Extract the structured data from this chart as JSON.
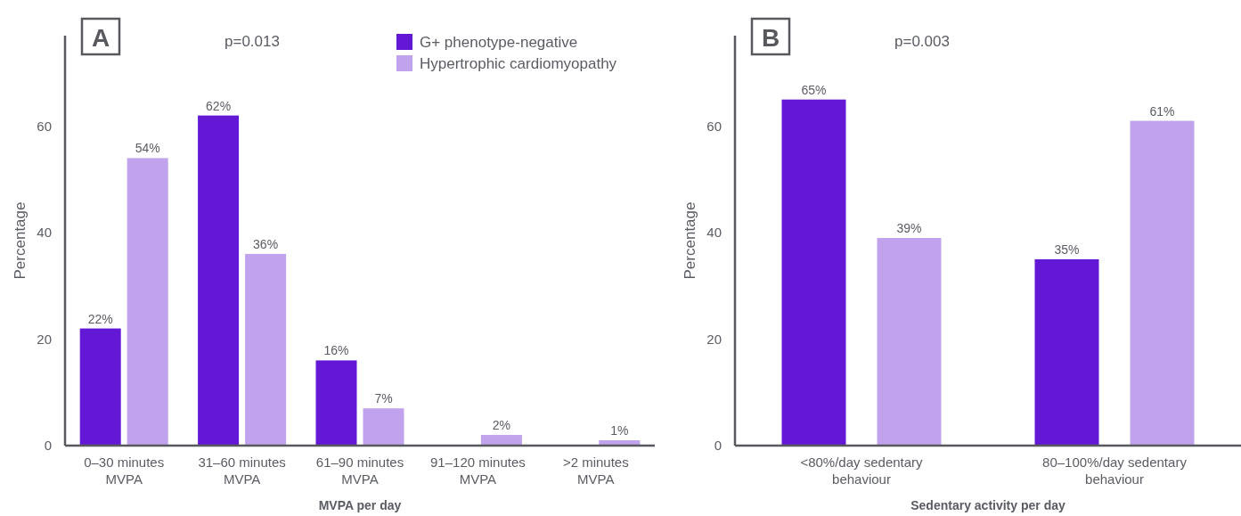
{
  "chart_data": [
    {
      "type": "bar",
      "title": "p=0.013",
      "annotations": [
        "A"
      ],
      "xlabel": "MVPA per day",
      "ylabel": "Percentage",
      "categories": [
        "0–30 minutes\nMVPA",
        "31–60 minutes\nMVPA",
        "61–90 minutes\nMVPA",
        "91–120 minutes\nMVPA",
        ">2 minutes\nMVPA"
      ],
      "series": [
        {
          "name": "G+ phenotype-negative",
          "color": "#6318d6",
          "values": [
            22,
            62,
            16,
            null,
            null
          ],
          "value_labels": [
            "22%",
            "62%",
            "16%",
            null,
            null
          ]
        },
        {
          "name": "Hypertrophic cardiomyopathy",
          "color": "#c1a3ed",
          "values": [
            54,
            36,
            7,
            2,
            1
          ],
          "value_labels": [
            "54%",
            "36%",
            "7%",
            "2%",
            "1%"
          ]
        }
      ],
      "ylim": [
        0,
        77
      ],
      "yticks": [
        0,
        20,
        40,
        60
      ],
      "grid": false,
      "legend": "top right"
    },
    {
      "type": "bar",
      "title": "p=0.003",
      "annotations": [
        "B"
      ],
      "xlabel": "Sedentary activity per day",
      "ylabel": "Percentage",
      "categories": [
        "<80%/day sedentary\nbehaviour",
        "80–100%/day sedentary\nbehaviour"
      ],
      "series": [
        {
          "color": "#6318d6",
          "values": [
            65,
            35
          ],
          "value_labels": [
            "65%",
            "35%"
          ]
        },
        {
          "color": "#c1a3ed",
          "values": [
            39,
            61
          ],
          "value_labels": [
            "39%",
            "61%"
          ]
        }
      ],
      "ylim": [
        0,
        77
      ],
      "yticks": [
        0,
        20,
        40,
        60
      ],
      "grid": false,
      "legend": false
    }
  ]
}
